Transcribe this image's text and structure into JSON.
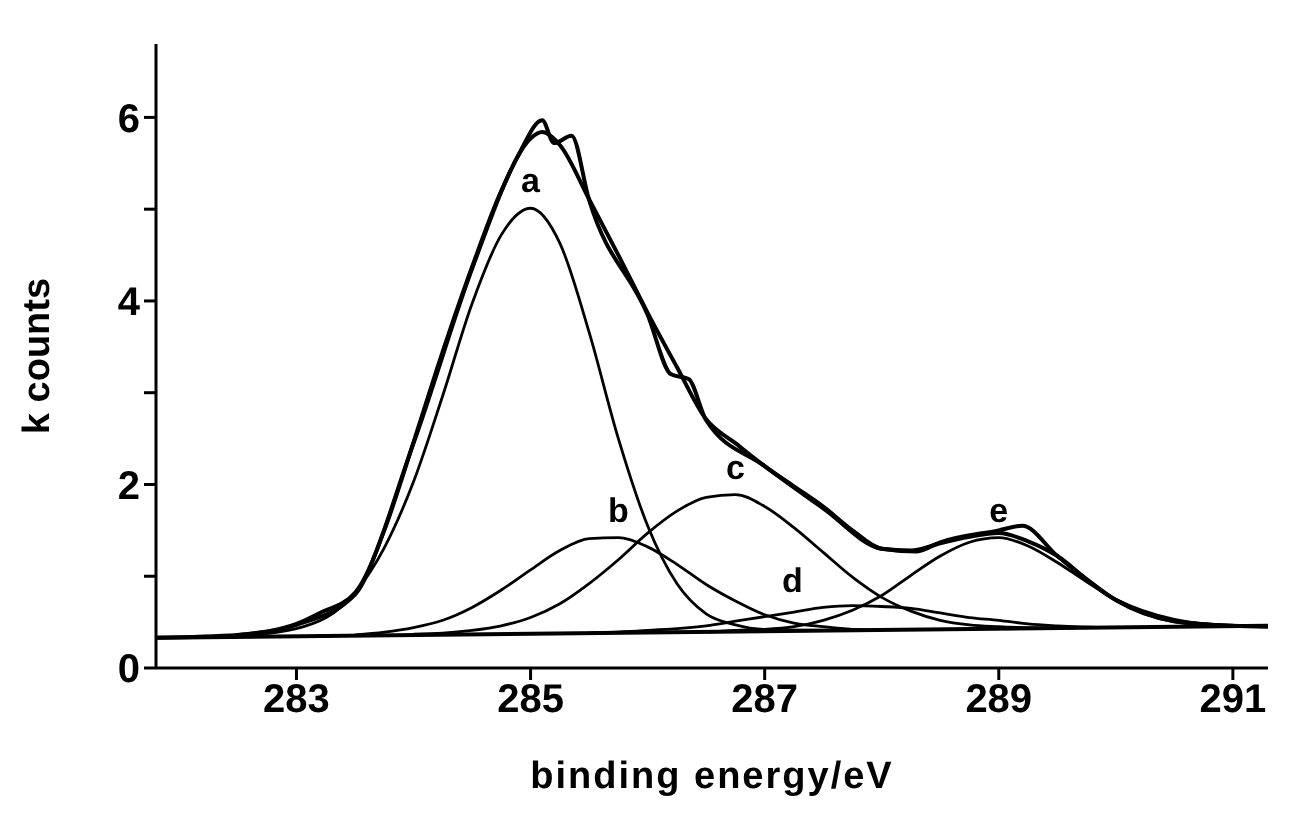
{
  "chart_data": {
    "type": "line",
    "xlabel": "binding energy/eV",
    "ylabel": "k counts",
    "xlim": [
      281.8,
      291.3
    ],
    "xticks": [
      283,
      285,
      287,
      289,
      291
    ],
    "ylim": [
      0,
      6.8
    ],
    "yticks": [
      0,
      {
        "value": 1,
        "label": null
      },
      2,
      {
        "value": 3,
        "label": null
      },
      4,
      {
        "value": 5,
        "label": null
      },
      6
    ],
    "grid": false,
    "marker": "none",
    "line_style": "solid",
    "series": [
      {
        "color": "#000000",
        "x": [
          282.5,
          283,
          283.2,
          283.5,
          284,
          284.5,
          284.9,
          285.1,
          285.2,
          285.35,
          285.5,
          286,
          286.2,
          286.35,
          286.5,
          287,
          287.5,
          288,
          288.3,
          288.5,
          289,
          289.2,
          289.5,
          290,
          290.5,
          291
        ],
        "values": [
          0.36,
          0.48,
          0.6,
          0.82,
          2.45,
          4.35,
          5.6,
          5.97,
          5.72,
          5.8,
          5.1,
          3.85,
          3.2,
          3.15,
          2.7,
          2.2,
          1.74,
          1.3,
          1.27,
          1.37,
          1.5,
          1.55,
          1.22,
          0.74,
          0.51,
          0.46
        ]
      },
      {
        "color": "#000000",
        "x": [
          281.8,
          282.5,
          283,
          283.5,
          283.75,
          284,
          284.25,
          284.5,
          284.75,
          285,
          285.1,
          285.25,
          285.5,
          285.75,
          286,
          286.25,
          286.5,
          286.75,
          287,
          287.25,
          287.5,
          287.75,
          288,
          288.25,
          288.5,
          288.75,
          289,
          289.25,
          289.5,
          289.75,
          290,
          290.5,
          291,
          291.3
        ],
        "values": [
          0.33,
          0.36,
          0.47,
          0.8,
          1.5,
          2.46,
          3.45,
          4.37,
          5.2,
          5.77,
          5.84,
          5.7,
          5.11,
          4.5,
          3.87,
          3.28,
          2.71,
          2.45,
          2.2,
          1.98,
          1.76,
          1.5,
          1.3,
          1.28,
          1.36,
          1.43,
          1.47,
          1.38,
          1.22,
          0.97,
          0.74,
          0.51,
          0.46,
          0.45
        ]
      },
      {
        "color": "#000000",
        "x": [
          281.8,
          291.3
        ],
        "values": [
          0.33,
          0.46
        ]
      },
      {
        "name": "a",
        "color": "#000000",
        "x": [
          282.5,
          283,
          283.5,
          283.75,
          284,
          284.25,
          284.5,
          284.75,
          285,
          285.25,
          285.5,
          285.75,
          286,
          286.25,
          286.5,
          286.75,
          287,
          287.5
        ],
        "values": [
          0.35,
          0.43,
          0.82,
          1.31,
          2.03,
          2.97,
          3.97,
          4.72,
          5.01,
          4.63,
          3.66,
          2.5,
          1.55,
          0.92,
          0.59,
          0.47,
          0.42,
          0.41
        ]
      },
      {
        "name": "b",
        "color": "#000000",
        "x": [
          283.5,
          283.75,
          284,
          284.25,
          284.5,
          284.75,
          285,
          285.25,
          285.5,
          285.75,
          286,
          286.25,
          286.5,
          286.75,
          287,
          287.25,
          287.5,
          287.75,
          288
        ],
        "values": [
          0.36,
          0.39,
          0.44,
          0.52,
          0.66,
          0.85,
          1.07,
          1.28,
          1.41,
          1.42,
          1.32,
          1.13,
          0.91,
          0.73,
          0.58,
          0.49,
          0.45,
          0.42,
          0.41
        ]
      },
      {
        "name": "c",
        "color": "#000000",
        "x": [
          284,
          284.25,
          284.5,
          284.75,
          285,
          285.25,
          285.5,
          285.75,
          286,
          286.25,
          286.5,
          286.75,
          287,
          287.25,
          287.5,
          287.75,
          288,
          288.25,
          288.5,
          288.75,
          289,
          289.5
        ],
        "values": [
          0.37,
          0.38,
          0.41,
          0.46,
          0.55,
          0.7,
          0.92,
          1.18,
          1.47,
          1.71,
          1.86,
          1.89,
          1.76,
          1.53,
          1.26,
          0.99,
          0.77,
          0.62,
          0.52,
          0.47,
          0.45,
          0.43
        ]
      },
      {
        "name": "d",
        "color": "#000000",
        "x": [
          285.5,
          286,
          286.5,
          286.75,
          287,
          287.25,
          287.5,
          287.75,
          288,
          288.25,
          288.5,
          288.75,
          289,
          289.25,
          289.5,
          290
        ],
        "values": [
          0.38,
          0.41,
          0.46,
          0.51,
          0.56,
          0.61,
          0.66,
          0.68,
          0.67,
          0.65,
          0.6,
          0.55,
          0.52,
          0.48,
          0.46,
          0.44
        ]
      },
      {
        "name": "e",
        "color": "#000000",
        "x": [
          286.5,
          286.75,
          287,
          287.25,
          287.5,
          287.75,
          288,
          288.25,
          288.5,
          288.75,
          289,
          289.25,
          289.5,
          289.75,
          290,
          290.5,
          291
        ],
        "values": [
          0.39,
          0.41,
          0.42,
          0.45,
          0.52,
          0.63,
          0.79,
          1.01,
          1.22,
          1.37,
          1.42,
          1.33,
          1.15,
          0.94,
          0.75,
          0.53,
          0.46
        ]
      }
    ]
  }
}
